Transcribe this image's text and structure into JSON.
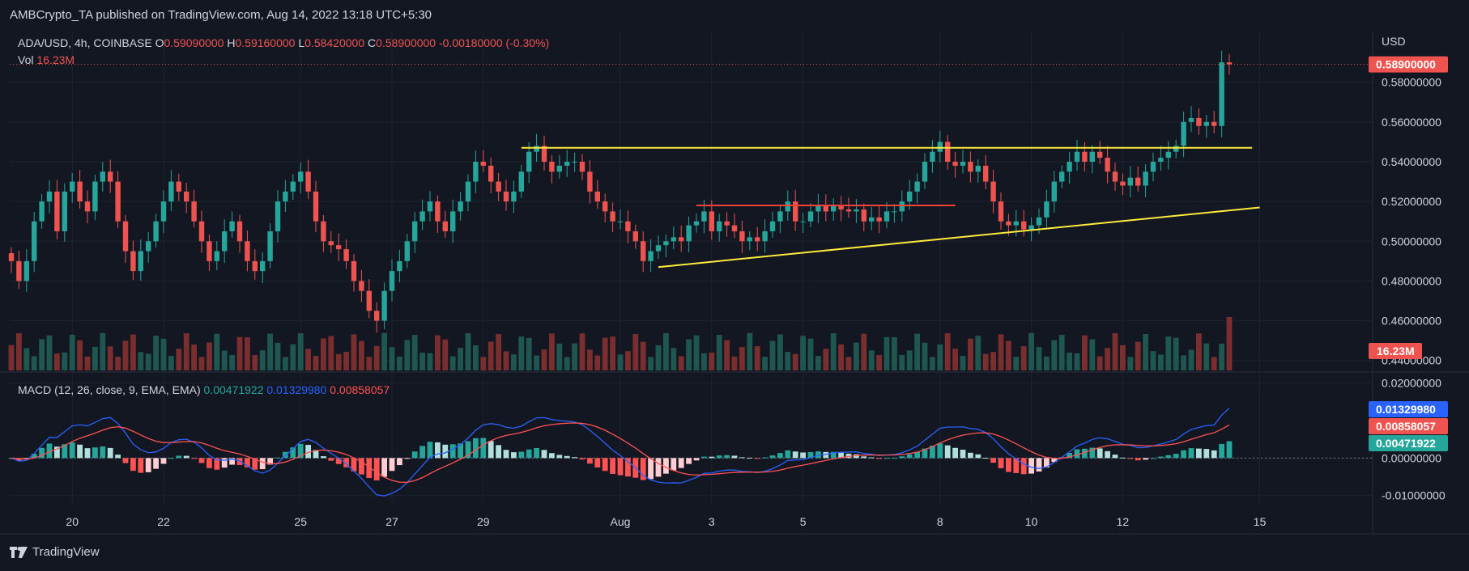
{
  "header": {
    "published": "AMBCrypto_TA published on TradingView.com, Aug 14, 2022 13:18 UTC+5:30"
  },
  "legend": {
    "symbol": "ADA/USD, 4h, COINBASE",
    "open_label": "O",
    "open": "0.59090000",
    "high_label": "H",
    "high": "0.59160000",
    "low_label": "L",
    "low": "0.58420000",
    "close_label": "C",
    "close": "0.58900000",
    "change": "-0.00180000 (-0.30%)",
    "vol_label": "Vol",
    "vol": "16.23M"
  },
  "macd_legend": {
    "title": "MACD (12, 26, close, 9, EMA, EMA)",
    "histogram": "0.00471922",
    "macd": "0.01329980",
    "signal": "0.00858057"
  },
  "price_axis": {
    "currency": "USD",
    "ticks": [
      "0.58000000",
      "0.56000000",
      "0.54000000",
      "0.52000000",
      "0.50000000",
      "0.48000000",
      "0.46000000",
      "0.44000000"
    ],
    "last_price_tag": "0.58900000",
    "volume_tag": "16.23M"
  },
  "macd_axis": {
    "ticks": [
      "0.02000000",
      "0.00000000",
      "-0.01000000"
    ],
    "macd_tag": "0.01329980",
    "signal_tag": "0.00858057",
    "hist_tag": "0.00471922"
  },
  "time_axis": {
    "labels": [
      "20",
      "22",
      "25",
      "27",
      "29",
      "Aug",
      "3",
      "5",
      "8",
      "10",
      "12",
      "15"
    ]
  },
  "footer": {
    "brand": "TradingView"
  },
  "colors": {
    "background": "#131722",
    "grid": "#1f2330",
    "text": "#d1d4dc",
    "up": "#26a69a",
    "down": "#ef5350",
    "vol_up": "#1f5750",
    "vol_down": "#7a2e2e",
    "macd_line": "#2962ff",
    "signal_line": "#ff5252",
    "hist_pos_strong": "#26a69a",
    "hist_pos_weak": "#b2dfdb",
    "hist_neg_strong": "#ff5252",
    "hist_neg_weak": "#ffcdd2",
    "trendline": "#ffeb3b",
    "redline": "#f44336",
    "macd_tag": "#2962ff",
    "signal_tag": "#ef5350",
    "hist_tag": "#26a69a"
  },
  "chart_data": {
    "type": "candlestick",
    "title": "ADA/USD, 4h, COINBASE",
    "price_range": [
      0.435,
      0.599
    ],
    "time_ticks": [
      {
        "label": "20",
        "index": 8
      },
      {
        "label": "22",
        "index": 20
      },
      {
        "label": "25",
        "index": 38
      },
      {
        "label": "27",
        "index": 50
      },
      {
        "label": "29",
        "index": 62
      },
      {
        "label": "Aug",
        "index": 80
      },
      {
        "label": "3",
        "index": 92
      },
      {
        "label": "5",
        "index": 104
      },
      {
        "label": "8",
        "index": 122
      },
      {
        "label": "10",
        "index": 134
      },
      {
        "label": "12",
        "index": 146
      },
      {
        "label": "15",
        "index": 164
      }
    ],
    "closes": [
      0.49,
      0.48,
      0.49,
      0.51,
      0.52,
      0.525,
      0.505,
      0.525,
      0.53,
      0.52,
      0.515,
      0.53,
      0.535,
      0.53,
      0.51,
      0.495,
      0.485,
      0.495,
      0.5,
      0.51,
      0.52,
      0.53,
      0.525,
      0.52,
      0.51,
      0.5,
      0.49,
      0.495,
      0.505,
      0.51,
      0.5,
      0.49,
      0.485,
      0.49,
      0.505,
      0.52,
      0.525,
      0.53,
      0.535,
      0.525,
      0.51,
      0.5,
      0.498,
      0.496,
      0.49,
      0.48,
      0.475,
      0.465,
      0.46,
      0.475,
      0.485,
      0.49,
      0.5,
      0.51,
      0.515,
      0.52,
      0.51,
      0.505,
      0.515,
      0.52,
      0.53,
      0.54,
      0.538,
      0.53,
      0.525,
      0.52,
      0.525,
      0.535,
      0.545,
      0.548,
      0.54,
      0.535,
      0.538,
      0.54,
      0.54,
      0.535,
      0.525,
      0.52,
      0.515,
      0.51,
      0.51,
      0.505,
      0.5,
      0.49,
      0.495,
      0.498,
      0.5,
      0.502,
      0.5,
      0.508,
      0.51,
      0.515,
      0.505,
      0.51,
      0.508,
      0.505,
      0.5,
      0.502,
      0.5,
      0.505,
      0.51,
      0.515,
      0.52,
      0.51,
      0.51,
      0.515,
      0.518,
      0.515,
      0.518,
      0.516,
      0.515,
      0.516,
      0.51,
      0.512,
      0.51,
      0.515,
      0.515,
      0.52,
      0.525,
      0.53,
      0.54,
      0.545,
      0.55,
      0.54,
      0.538,
      0.54,
      0.535,
      0.538,
      0.53,
      0.52,
      0.51,
      0.508,
      0.51,
      0.506,
      0.508,
      0.512,
      0.52,
      0.53,
      0.535,
      0.54,
      0.545,
      0.54,
      0.545,
      0.542,
      0.535,
      0.53,
      0.528,
      0.532,
      0.528,
      0.535,
      0.54,
      0.542,
      0.545,
      0.548,
      0.56,
      0.562,
      0.558,
      0.56,
      0.558,
      0.59,
      0.589
    ],
    "volume_last": "16.23M",
    "macd_range": [
      -0.012,
      0.0225
    ],
    "macd_last": 0.0132998,
    "signal_last": 0.00858057,
    "histogram_last": 0.00471922,
    "annotations": [
      {
        "type": "horizontal_line",
        "color": "trendline",
        "value": 0.547,
        "from_index": 67,
        "to_index": 163
      },
      {
        "type": "trendline",
        "color": "trendline",
        "from": {
          "index": 85,
          "value": 0.487
        },
        "to": {
          "index": 164,
          "value": 0.517
        }
      },
      {
        "type": "horizontal_line",
        "color": "redline",
        "value": 0.518,
        "from_index": 90,
        "to_index": 124
      }
    ]
  }
}
